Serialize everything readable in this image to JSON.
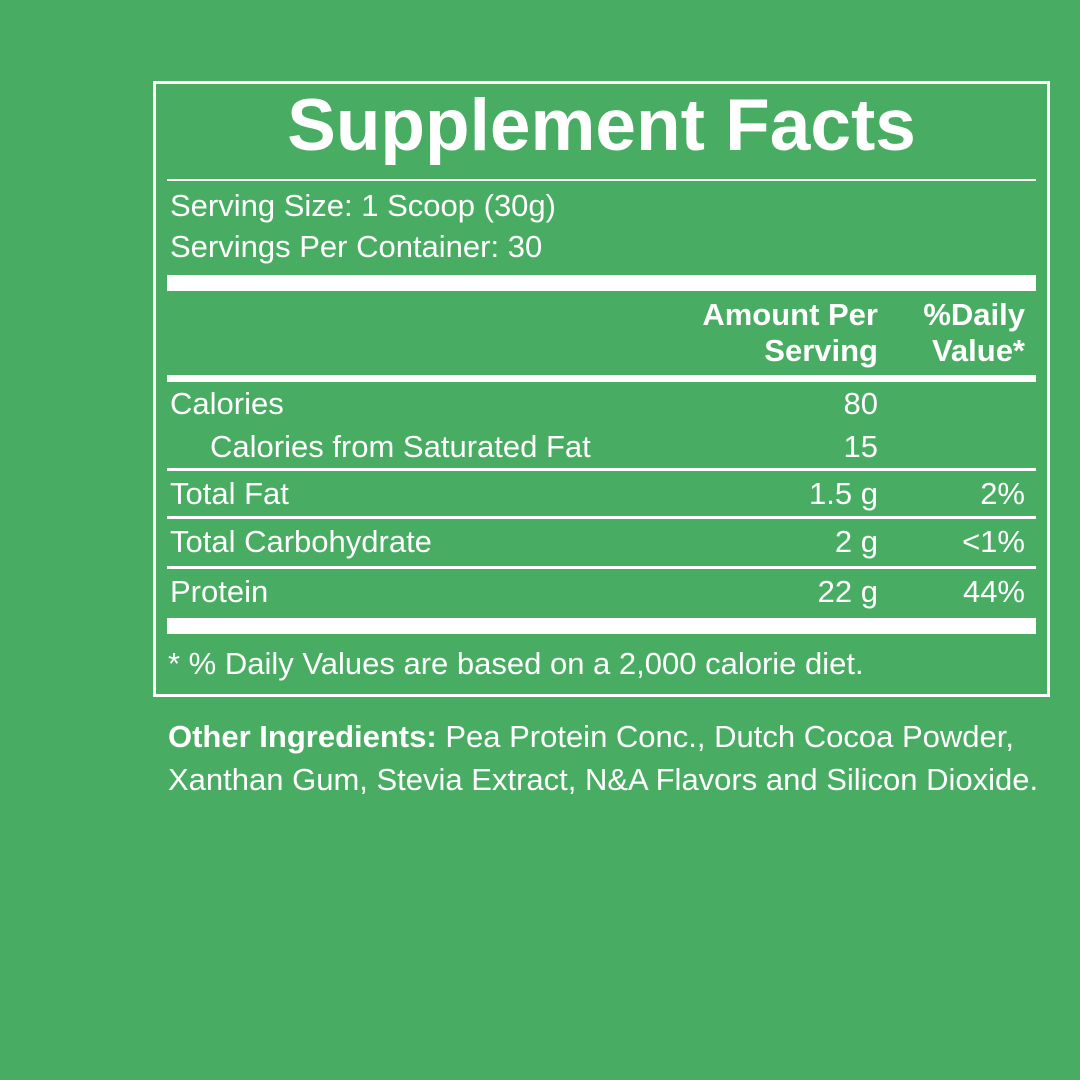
{
  "title": "Supplement Facts",
  "serving_size": "Serving Size: 1 Scoop (30g)",
  "servings_per_container": "Servings Per Container: 30",
  "header": {
    "amount_line1": "Amount Per",
    "amount_line2": "Serving",
    "dv_line1": "%Daily",
    "dv_line2": "Value*"
  },
  "rows": [
    {
      "name": "Calories",
      "amount": "80",
      "dv": ""
    },
    {
      "name": "Calories from Saturated Fat",
      "amount": "15",
      "dv": ""
    },
    {
      "name": "Total Fat",
      "amount": "1.5 g",
      "dv": "2%"
    },
    {
      "name": "Total Carbohydrate",
      "amount": "2 g",
      "dv": "<1%"
    },
    {
      "name": "Protein",
      "amount": "22 g",
      "dv": "44%"
    }
  ],
  "footnote": "* % Daily Values are based on a 2,000 calorie diet.",
  "other_ingredients": {
    "label": "Other Ingredients:",
    "text": " Pea Protein Conc., Dutch Cocoa Powder, Xanthan Gum, Stevia Extract, N&A Flavors and Silicon Dioxide."
  },
  "colors": {
    "background": "#48ad62",
    "foreground": "#ffffff"
  }
}
